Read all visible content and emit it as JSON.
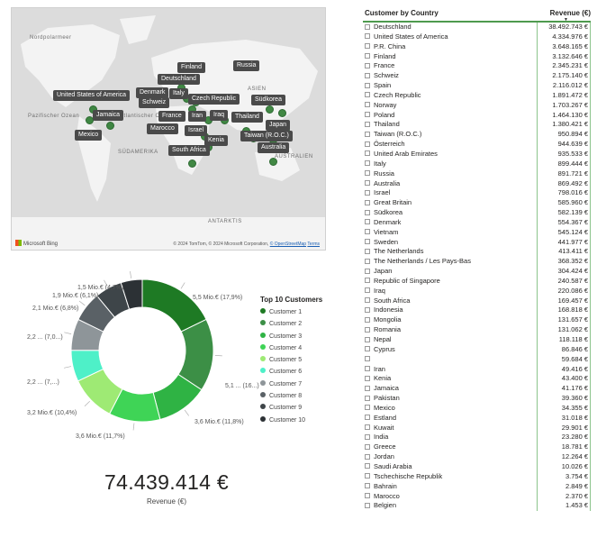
{
  "map": {
    "region_labels": [
      "Nordpolarmeer",
      "Pazifischer Ozean",
      "Atlantischer Ozean",
      "ASIEN",
      "SÜDAMERIKA",
      "AUSTRALIEN",
      "ANTARKTIS"
    ],
    "pins": [
      "Finland",
      "Russia",
      "Deutschland",
      "United States of America",
      "Denmark",
      "Italy",
      "Schweiz",
      "Czech Republic",
      "Südkorea",
      "Jamaica",
      "France",
      "Iran",
      "Iraq",
      "Thailand",
      "Japan",
      "Mexico",
      "Marocco",
      "Israel",
      "Taiwan (R.O.C.)",
      "Kenia",
      "Australia",
      "South Africa"
    ],
    "attribution_left": "Microsoft Bing",
    "attribution_right": "© 2024 TomTom, © 2024 Microsoft Corporation,",
    "attribution_link": "© OpenStreetMap",
    "attribution_terms": "Terms",
    "bubble_color": "#2e7d32"
  },
  "donut": {
    "slice_labels": [
      "5,5 Mio.€ (17,9%)",
      "5,1 ... (16...)",
      "3,6 Mio.€ (11,8%)",
      "3,6 Mio.€ (11,7%)",
      "3,2 Mio.€ (10,4%)",
      "2,2 ... (7,...)",
      "2,2 ... (7,0...)",
      "2,1 Mio.€ (6,8%)",
      "1,9 Mio.€ (6,1%)",
      "1,5 Mio.€ (4,7%)"
    ]
  },
  "legend": {
    "title": "Top 10 Customers",
    "items": [
      "Customer 1",
      "Customer 2",
      "Customer 3",
      "Customer 4",
      "Customer 5",
      "Customer 6",
      "Customer 7",
      "Customer 8",
      "Customer 9",
      "Customer 10"
    ]
  },
  "kpi": {
    "value": "74.439.414 €",
    "caption": "Revenue (€)"
  },
  "table": {
    "col_name": "Customer by Country",
    "col_rev": "Revenue (€)",
    "sort_glyph": "▼",
    "rows": [
      [
        "Deutschland",
        "38.492.743 €"
      ],
      [
        "United States of America",
        "4.334.976 €"
      ],
      [
        "P.R. China",
        "3.648.165 €"
      ],
      [
        "Finland",
        "3.132.646 €"
      ],
      [
        "France",
        "2.345.231 €"
      ],
      [
        "Schweiz",
        "2.175.140 €"
      ],
      [
        "Spain",
        "2.116.012 €"
      ],
      [
        "Czech Republic",
        "1.891.472 €"
      ],
      [
        "Norway",
        "1.703.267 €"
      ],
      [
        "Poland",
        "1.464.130 €"
      ],
      [
        "Thailand",
        "1.380.421 €"
      ],
      [
        "Taiwan (R.O.C.)",
        "950.894 €"
      ],
      [
        "Österreich",
        "944.639 €"
      ],
      [
        "United Arab Emirates",
        "935.533 €"
      ],
      [
        "Italy",
        "899.444 €"
      ],
      [
        "Russia",
        "891.721 €"
      ],
      [
        "Australia",
        "869.492 €"
      ],
      [
        "Israel",
        "798.016 €"
      ],
      [
        "Great Britain",
        "585.960 €"
      ],
      [
        "Südkorea",
        "582.139 €"
      ],
      [
        "Denmark",
        "554.367 €"
      ],
      [
        "Vietnam",
        "545.124 €"
      ],
      [
        "Sweden",
        "441.977 €"
      ],
      [
        "The Netherlands",
        "413.411 €"
      ],
      [
        "The Netherlands / Les Pays-Bas",
        "368.352 €"
      ],
      [
        "Japan",
        "304.424 €"
      ],
      [
        "Republic of Singapore",
        "240.587 €"
      ],
      [
        "Iraq",
        "220.086 €"
      ],
      [
        "South Africa",
        "169.457 €"
      ],
      [
        "Indonesia",
        "168.818 €"
      ],
      [
        "Mongolia",
        "131.657 €"
      ],
      [
        "Romania",
        "131.062 €"
      ],
      [
        "Nepal",
        "118.118 €"
      ],
      [
        "Cyprus",
        "86.846 €"
      ],
      [
        "",
        "59.684 €"
      ],
      [
        "Iran",
        "49.416 €"
      ],
      [
        "Kenia",
        "43.400 €"
      ],
      [
        "Jamaica",
        "41.176 €"
      ],
      [
        "Pakistan",
        "39.360 €"
      ],
      [
        "Mexico",
        "34.355 €"
      ],
      [
        "Estland",
        "31.018 €"
      ],
      [
        "Kuwait",
        "29.901 €"
      ],
      [
        "India",
        "23.280 €"
      ],
      [
        "Greece",
        "18.781 €"
      ],
      [
        "Jordan",
        "12.264 €"
      ],
      [
        "Saudi Arabia",
        "10.026 €"
      ],
      [
        "Tschechische Republik",
        "3.754 €"
      ],
      [
        "Bahrain",
        "2.849 €"
      ],
      [
        "Marocco",
        "2.370 €"
      ],
      [
        "Belgien",
        "1.453 €"
      ]
    ]
  },
  "chart_data": [
    {
      "type": "pie",
      "title": "Top 10 Customers",
      "categories": [
        "Customer 1",
        "Customer 2",
        "Customer 3",
        "Customer 4",
        "Customer 5",
        "Customer 6",
        "Customer 7",
        "Customer 8",
        "Customer 9",
        "Customer 10"
      ],
      "values": [
        5.5,
        5.1,
        3.6,
        3.6,
        3.2,
        2.2,
        2.2,
        2.1,
        1.9,
        1.5
      ],
      "percent": [
        17.9,
        16.5,
        11.8,
        11.7,
        10.4,
        7.1,
        7.0,
        6.8,
        6.1,
        4.7
      ],
      "unit": "Mio.€",
      "colors": [
        "#1e7a24",
        "#3c8f46",
        "#2fb344",
        "#3fd456",
        "#9eea74",
        "#4ef0c8",
        "#8e9599",
        "#5a6166",
        "#3e4549",
        "#2c3135"
      ],
      "legend": "right",
      "donut": true
    },
    {
      "type": "table",
      "title": "Customer by Country",
      "columns": [
        "Customer by Country",
        "Revenue (€)"
      ],
      "values_eur": [
        38492743,
        4334976,
        3648165,
        3132646,
        2345231,
        2175140,
        2116012,
        1891472,
        1703267,
        1464130,
        1380421,
        950894,
        944639,
        935533,
        899444,
        891721,
        869492,
        798016,
        585960,
        582139,
        554367,
        545124,
        441977,
        413411,
        368352,
        304424,
        240587,
        220086,
        169457,
        168818,
        131657,
        131062,
        118118,
        86846,
        59684,
        49416,
        43400,
        41176,
        39360,
        34355,
        31018,
        29901,
        23280,
        18781,
        12264,
        10026,
        3754,
        2849,
        2370,
        1453
      ]
    }
  ]
}
